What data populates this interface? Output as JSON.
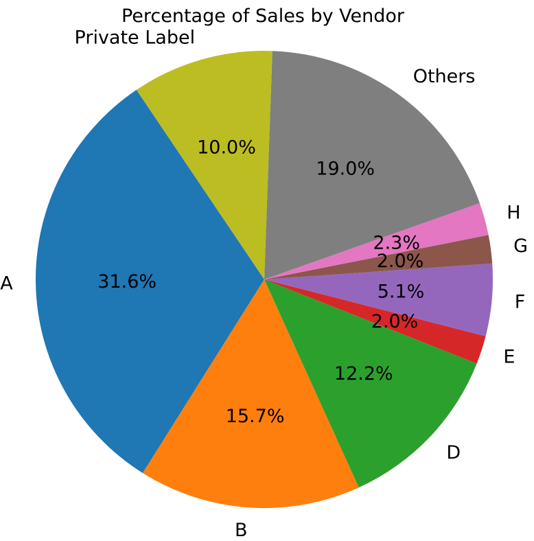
{
  "chart_data": {
    "type": "pie",
    "title": "Percentage of Sales by Vendor",
    "slices": [
      {
        "label": "A",
        "value": 31.6,
        "display": "31.6%",
        "color": "#1f77b4"
      },
      {
        "label": "B",
        "value": 15.7,
        "display": "15.7%",
        "color": "#ff7f0e"
      },
      {
        "label": "D",
        "value": 12.2,
        "display": "12.2%",
        "color": "#2ca02c"
      },
      {
        "label": "E",
        "value": 2.0,
        "display": "2.0%",
        "color": "#d62728"
      },
      {
        "label": "F",
        "value": 5.1,
        "display": "5.1%",
        "color": "#9467bd"
      },
      {
        "label": "G",
        "value": 2.0,
        "display": "2.0%",
        "color": "#8c564b"
      },
      {
        "label": "H",
        "value": 2.3,
        "display": "2.3%",
        "color": "#e377c2"
      },
      {
        "label": "Others",
        "value": 19.0,
        "display": "19.0%",
        "color": "#7f7f7f"
      },
      {
        "label": "Private Label",
        "value": 10.0,
        "display": "10.0%",
        "color": "#bcbd22"
      }
    ],
    "start_angle_deg": 124,
    "direction": "counterclockwise"
  }
}
